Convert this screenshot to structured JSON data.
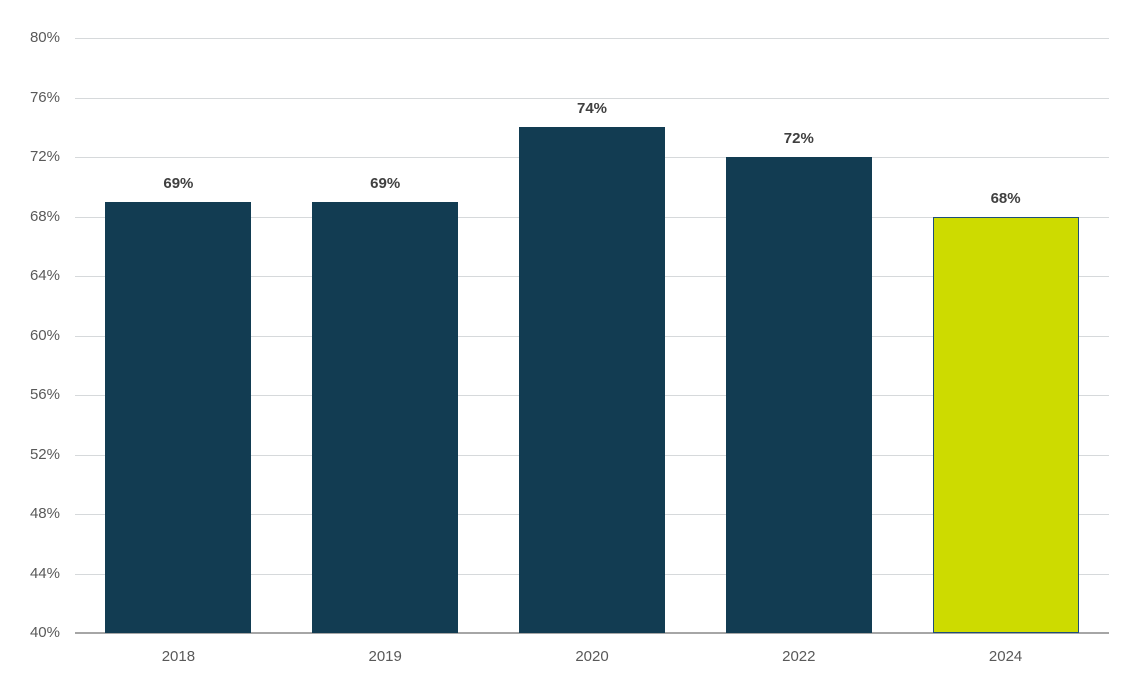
{
  "chart_data": {
    "type": "bar",
    "title": "",
    "xlabel": "",
    "ylabel": "",
    "categories": [
      "2018",
      "2019",
      "2020",
      "2022",
      "2024"
    ],
    "values": [
      69,
      69,
      74,
      72,
      68
    ],
    "data_labels": [
      "69%",
      "69%",
      "74%",
      "72%",
      "68%"
    ],
    "ylim": [
      40,
      80
    ],
    "ytick_step": 4,
    "yticks": [
      40,
      44,
      48,
      52,
      56,
      60,
      64,
      68,
      72,
      76,
      80
    ],
    "ytick_labels": [
      "40%",
      "44%",
      "48%",
      "52%",
      "56%",
      "60%",
      "64%",
      "68%",
      "72%",
      "76%",
      "80%"
    ],
    "grid": "horizontal",
    "legend": "none",
    "bar_colors": [
      "#123C52",
      "#123C52",
      "#123C52",
      "#123C52",
      "#CDDB00"
    ],
    "bar_border_colors": [
      null,
      null,
      null,
      null,
      "#1F4E79"
    ],
    "colors": {
      "gridline": "#D6D9DB",
      "axis_line": "#A6A6A6",
      "tick_label": "#595959",
      "data_label": "#404040",
      "background": "#FFFFFF"
    }
  }
}
